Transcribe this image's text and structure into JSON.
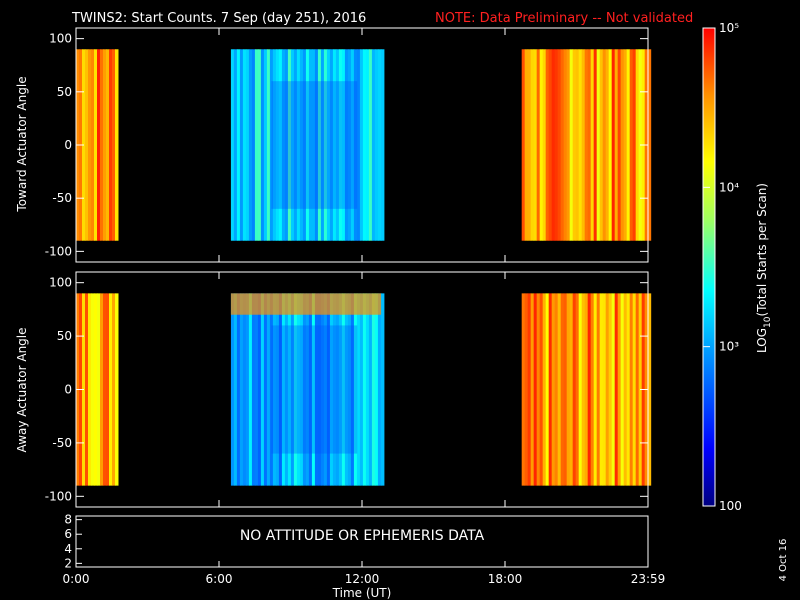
{
  "chart_data": {
    "type": "heatmap",
    "title": "TWINS2: Start Counts.  7 Sep (day 251), 2016",
    "note": "NOTE: Data Preliminary -- Not validated",
    "colors": {
      "note": "#ff2020",
      "background": "#000000",
      "axis": "#ffffff"
    },
    "panels": [
      {
        "ylabel": "Toward Actuator Angle",
        "ylim": [
          -110,
          110
        ],
        "yticks": [
          "100",
          "50",
          "0",
          "-50",
          "-100"
        ],
        "ytick_values": [
          100,
          50,
          0,
          -50,
          -100
        ],
        "angle_range": [
          -90,
          90
        ],
        "data_intervals_hours": [
          [
            0.0,
            1.7
          ],
          [
            6.5,
            12.8
          ],
          [
            18.7,
            24.0
          ]
        ],
        "log10_counts_by_interval": [
          4.6,
          3.2,
          4.5
        ]
      },
      {
        "ylabel": "Away Actuator Angle",
        "ylim": [
          -110,
          110
        ],
        "yticks": [
          "100",
          "50",
          "0",
          "-50",
          "-100"
        ],
        "ytick_values": [
          100,
          50,
          0,
          -50,
          -100
        ],
        "angle_range": [
          -90,
          90
        ],
        "data_intervals_hours": [
          [
            0.0,
            1.7
          ],
          [
            6.5,
            12.8
          ],
          [
            18.7,
            24.0
          ]
        ],
        "log10_counts_by_interval": [
          4.5,
          3.1,
          4.5
        ]
      },
      {
        "message": "NO ATTITUDE OR EPHEMERIS DATA",
        "ylim": [
          1.5,
          8.5
        ],
        "yticks": [
          "8",
          "6",
          "4",
          "2"
        ],
        "ytick_values": [
          8,
          6,
          4,
          2
        ]
      }
    ],
    "x": {
      "xlabel": "Time (UT)",
      "xlim_hours": [
        0,
        24
      ],
      "ticks": [
        "0:00",
        "6:00",
        "12:00",
        "18:00",
        "23:59"
      ],
      "tick_values_hours": [
        0,
        6,
        12,
        18,
        24
      ]
    },
    "colorbar": {
      "label": "LOG10(Total Starts per Scan)",
      "label_base": "LOG",
      "label_sub": "10",
      "label_rest": "(Total Starts per Scan)",
      "scale": "log",
      "range": [
        100,
        100000
      ],
      "ticks": [
        "100",
        "10³",
        "10⁴",
        "10⁵"
      ],
      "tick_values": [
        100,
        1000,
        10000,
        100000
      ]
    },
    "footer_date": "4 Oct 16"
  }
}
